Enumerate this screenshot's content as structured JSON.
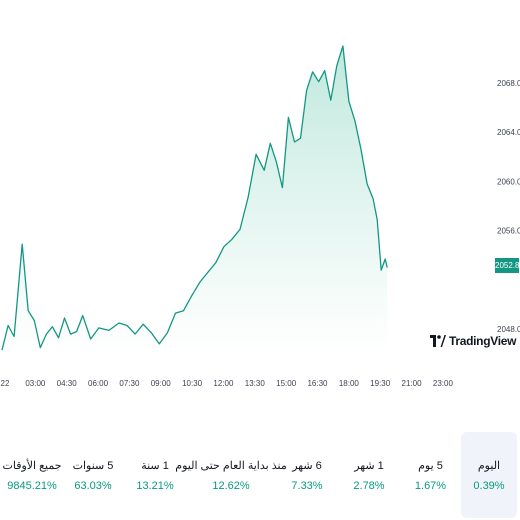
{
  "chart_data": {
    "type": "area",
    "y_ticks": [
      "2068.00",
      "2064.00",
      "2060.00",
      "2056.00",
      "2048.00"
    ],
    "x_ticks": [
      "22",
      "03:00",
      "04:30",
      "06:00",
      "07:30",
      "09:00",
      "10:30",
      "12:00",
      "13:30",
      "15:00",
      "16:30",
      "18:00",
      "19:30",
      "21:00",
      "23:00"
    ],
    "ylim": [
      2045.9,
      2072.3
    ],
    "current_price": "2052.80",
    "series": [
      {
        "x": [
          0,
          0.3,
          0.6,
          1.0,
          1.3,
          1.6,
          1.9,
          2.2,
          2.5,
          2.8,
          3.1,
          3.4,
          3.7,
          4.0,
          4.4,
          4.8,
          5.3,
          5.8,
          6.2,
          6.6,
          7.0,
          7.4,
          7.8,
          8.2,
          8.6,
          9.0,
          9.4,
          9.8,
          10.2,
          10.6,
          11.0,
          11.4,
          11.8,
          12.2,
          12.6,
          13.0,
          13.3,
          13.6,
          13.9,
          14.2,
          14.5,
          14.8,
          15.1,
          15.4,
          15.7,
          16.0,
          16.3,
          16.6,
          16.9,
          17.2,
          17.5,
          17.8,
          18.1,
          18.4,
          18.6,
          18.8,
          19.0,
          19.1
        ],
        "values": [
          2046.3,
          2048.3,
          2047.4,
          2054.9,
          2049.5,
          2048.7,
          2046.5,
          2047.6,
          2048.2,
          2047.3,
          2048.9,
          2047.6,
          2047.8,
          2049.1,
          2047.2,
          2048.1,
          2047.9,
          2048.5,
          2048.3,
          2047.6,
          2048.4,
          2047.7,
          2046.8,
          2047.7,
          2049.3,
          2049.5,
          2050.7,
          2051.8,
          2052.6,
          2053.4,
          2054.7,
          2055.3,
          2056.1,
          2058.7,
          2062.2,
          2060.9,
          2063.1,
          2061.6,
          2059.5,
          2065.2,
          2063.2,
          2063.5,
          2067.4,
          2068.9,
          2068.1,
          2069.0,
          2066.6,
          2069.4,
          2071.0,
          2066.5,
          2064.9,
          2062.6,
          2059.8,
          2058.6,
          2056.9,
          2052.8,
          2053.7,
          2053.0
        ]
      }
    ],
    "colors": {
      "line": "#139782",
      "fill_top": "#bfe8dd",
      "fill_bottom": "#ffffff",
      "badge": "#139782",
      "positive": "#089981"
    }
  },
  "logo": {
    "text": "TradingView",
    "icon": "tradingview-logo-icon"
  },
  "periods": [
    {
      "label": "اليوم",
      "value": "0.39%"
    },
    {
      "label": "5 يوم",
      "value": "1.67%"
    },
    {
      "label": "1 شهر",
      "value": "2.78%"
    },
    {
      "label": "6 شهر",
      "value": "7.33%"
    },
    {
      "label": "منذ بداية العام حتى اليوم",
      "value": "12.62%"
    },
    {
      "label": "1 سنة",
      "value": "13.21%"
    },
    {
      "label": "5 سنوات",
      "value": "63.03%"
    },
    {
      "label": "جميع الأوقات",
      "value": "9845.21%"
    }
  ]
}
